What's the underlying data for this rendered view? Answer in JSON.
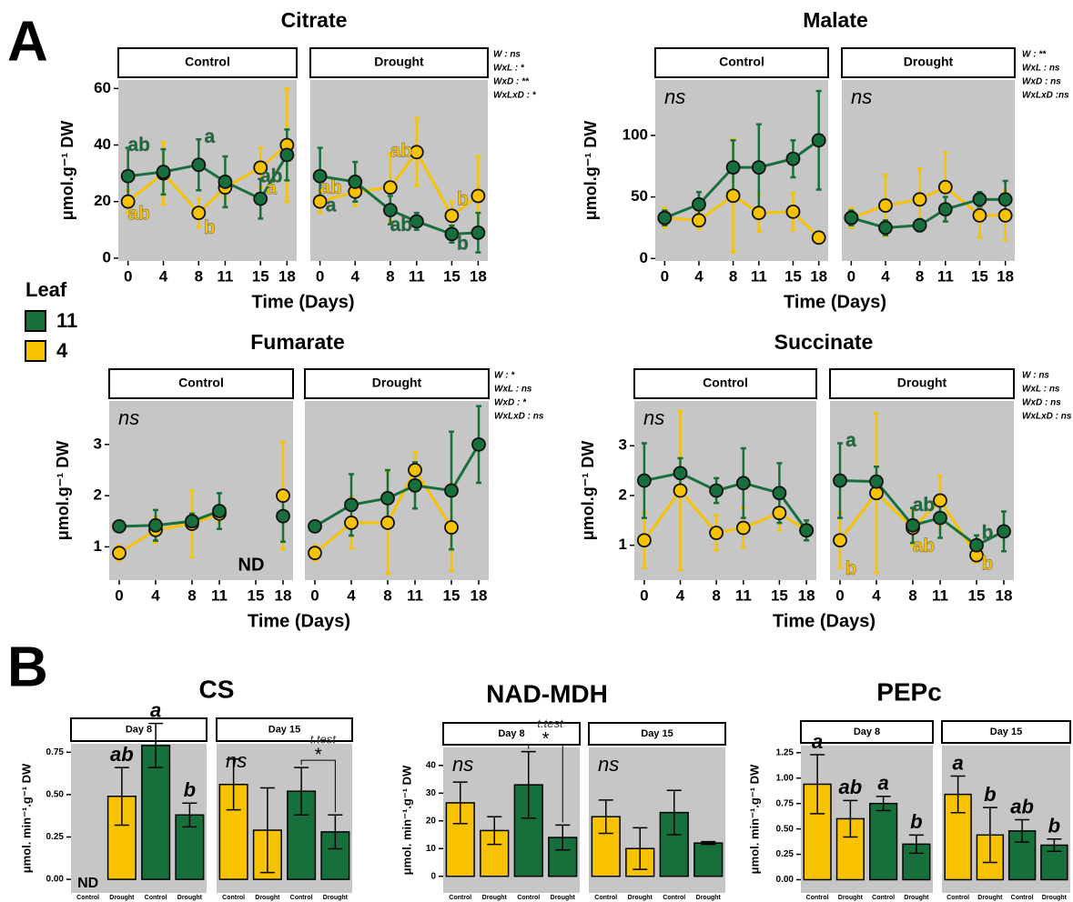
{
  "panel_labels": [
    "A",
    "B"
  ],
  "legend": {
    "title": "Leaf",
    "items": [
      {
        "name": "11",
        "color": "#17703c"
      },
      {
        "name": "4",
        "color": "#f7c200"
      }
    ]
  },
  "chart_data": [
    {
      "type": "line",
      "title": "Citrate",
      "ylabel": "μmol.g⁻¹ DW",
      "xlabel": "Time (Days)",
      "x": [
        0,
        4,
        8,
        11,
        15,
        18
      ],
      "xlim": [
        -1.1,
        19.1
      ],
      "xticks": [
        0,
        4,
        8,
        11,
        15,
        18
      ],
      "ylim": [
        -1,
        63
      ],
      "yticks": [
        0,
        20,
        40,
        60
      ],
      "stats": [
        "W : ns",
        "WxL : *",
        "WxD : **",
        "WxLxD : *"
      ],
      "facets": [
        {
          "name": "Control",
          "series": [
            {
              "color": "#f7c200",
              "values": [
                20,
                30,
                16,
                25,
                32,
                40
              ],
              "errors": [
                4,
                11,
                5,
                4,
                7,
                20
              ],
              "letters": [
                "ab",
                null,
                "b",
                null,
                "a",
                null
              ]
            },
            {
              "color": "#17703c",
              "values": [
                29,
                30.5,
                33,
                27,
                21,
                36.5
              ],
              "errors": [
                10,
                8,
                9,
                9,
                7,
                9
              ],
              "letters": [
                "ab",
                null,
                "a",
                null,
                "ab",
                null
              ]
            }
          ]
        },
        {
          "name": "Drought",
          "series": [
            {
              "color": "#f7c200",
              "values": [
                20,
                23.5,
                25,
                37.5,
                15,
                22
              ],
              "errors": [
                4,
                5,
                12,
                12,
                5,
                14
              ],
              "letters": [
                "ab",
                null,
                "ab",
                null,
                "b",
                null
              ]
            },
            {
              "color": "#17703c",
              "values": [
                29,
                27,
                17,
                13,
                8.5,
                9
              ],
              "errors": [
                10,
                7,
                5,
                3,
                3,
                7
              ],
              "letters": [
                "a",
                null,
                "ab",
                null,
                "b",
                null
              ]
            }
          ]
        }
      ]
    },
    {
      "type": "line",
      "title": "Malate",
      "ylabel": "μmol.g⁻¹ DW",
      "xlabel": "Time (Days)",
      "x": [
        0,
        4,
        8,
        11,
        15,
        18
      ],
      "xlim": [
        -1.1,
        19.1
      ],
      "xticks": [
        0,
        4,
        8,
        11,
        15,
        18
      ],
      "ylim": [
        -2,
        145
      ],
      "yticks": [
        0,
        50,
        100
      ],
      "stats": [
        "W : **",
        "WxL : ns",
        "WxD : ns",
        "WxLxD :ns"
      ],
      "facets": [
        {
          "name": "Control",
          "annotation": "ns",
          "series": [
            {
              "color": "#f7c200",
              "values": [
                33,
                31,
                51,
                37,
                38,
                17
              ],
              "errors": [
                8,
                7,
                46,
                15,
                15,
                4
              ]
            },
            {
              "color": "#17703c",
              "values": [
                33,
                44,
                74,
                74,
                81,
                96
              ],
              "errors": [
                6,
                10,
                22,
                35,
                15,
                40
              ]
            }
          ]
        },
        {
          "name": "Drought",
          "annotation": "ns",
          "series": [
            {
              "color": "#f7c200",
              "values": [
                33,
                43,
                48,
                58,
                35,
                35
              ],
              "errors": [
                8,
                25,
                25,
                28,
                18,
                20
              ]
            },
            {
              "color": "#17703c",
              "values": [
                33,
                25,
                27,
                40,
                48,
                48
              ],
              "errors": [
                6,
                6,
                5,
                10,
                6,
                15
              ]
            }
          ]
        }
      ]
    },
    {
      "type": "line",
      "title": "Fumarate",
      "ylabel": "μmol.g⁻¹ DW",
      "xlabel": "Time (Days)",
      "x": [
        0,
        4,
        8,
        11,
        15,
        18
      ],
      "xlim": [
        -1.1,
        19.1
      ],
      "xticks": [
        0,
        4,
        8,
        11,
        15,
        18
      ],
      "ylim": [
        0.35,
        3.85
      ],
      "yticks": [
        1,
        2,
        3
      ],
      "stats": [
        "W : *",
        "WxL : ns",
        "WxD : *",
        "WxLxD : ns"
      ],
      "facets": [
        {
          "name": "Control",
          "annotation": "ns",
          "nd": "ND",
          "series": [
            {
              "color": "#f7c200",
              "values": [
                0.88,
                1.33,
                1.45,
                1.65,
                null,
                2.0
              ],
              "errors": [
                0.15,
                0.25,
                0.65,
                0.15,
                null,
                1.05
              ]
            },
            {
              "color": "#17703c",
              "values": [
                1.4,
                1.42,
                1.5,
                1.7,
                null,
                1.6
              ],
              "errors": [
                0.08,
                0.3,
                0.15,
                0.35,
                null,
                0.5
              ]
            }
          ]
        },
        {
          "name": "Drought",
          "series": [
            {
              "color": "#f7c200",
              "values": [
                0.88,
                1.47,
                1.47,
                2.5,
                1.38,
                null
              ],
              "errors": [
                0.15,
                0.5,
                1.0,
                0.35,
                0.85,
                null
              ]
            },
            {
              "color": "#17703c",
              "values": [
                1.4,
                1.82,
                1.95,
                2.2,
                2.1,
                3.0
              ],
              "errors": [
                0.08,
                0.6,
                0.55,
                0.45,
                1.15,
                0.75
              ]
            }
          ]
        }
      ]
    },
    {
      "type": "line",
      "title": "Succinate",
      "ylabel": "μmol.g⁻¹ DW",
      "xlabel": "Time (Days)",
      "x": [
        0,
        4,
        8,
        11,
        15,
        18
      ],
      "xlim": [
        -1.1,
        19.1
      ],
      "xticks": [
        0,
        4,
        8,
        11,
        15,
        18
      ],
      "ylim": [
        0.3,
        3.9
      ],
      "yticks": [
        1,
        2,
        3
      ],
      "stats": [
        "W : ns",
        "WxL : ns",
        "WxD : ns",
        "WxLxD : ns"
      ],
      "facets": [
        {
          "name": "Control",
          "annotation": "ns",
          "series": [
            {
              "color": "#f7c200",
              "values": [
                1.1,
                2.1,
                1.25,
                1.35,
                1.65,
                1.3
              ],
              "errors": [
                0.55,
                1.6,
                0.35,
                0.4,
                0.35,
                0.2
              ]
            },
            {
              "color": "#17703c",
              "values": [
                2.3,
                2.45,
                2.1,
                2.25,
                2.05,
                1.3
              ],
              "errors": [
                0.75,
                0.3,
                0.25,
                0.7,
                0.6,
                0.2
              ]
            }
          ]
        },
        {
          "name": "Drought",
          "series": [
            {
              "color": "#f7c200",
              "values": [
                1.1,
                2.05,
                1.35,
                1.9,
                0.8,
                null
              ],
              "errors": [
                0.55,
                1.6,
                0.35,
                0.5,
                0.15,
                null
              ],
              "letters": [
                "b",
                null,
                "ab",
                null,
                "b",
                null
              ]
            },
            {
              "color": "#17703c",
              "values": [
                2.3,
                2.28,
                1.4,
                1.55,
                1.0,
                1.28
              ],
              "errors": [
                0.75,
                0.3,
                0.35,
                0.4,
                0.2,
                0.4
              ],
              "letters": [
                "a",
                null,
                "ab",
                null,
                "b",
                null
              ]
            }
          ]
        }
      ]
    },
    {
      "type": "bar",
      "title": "CS",
      "ylabel": "μmol. min⁻¹.g⁻¹ DW",
      "categories": [
        "Control",
        "Drought",
        "Control",
        "Drought"
      ],
      "colors": [
        "#f7c200",
        "#f7c200",
        "#17703c",
        "#17703c"
      ],
      "ylim": [
        -0.08,
        0.8
      ],
      "yticks": [
        {
          "value": 0,
          "label": "0.00"
        },
        {
          "value": 0.25,
          "label": "0.25"
        },
        {
          "value": 0.5,
          "label": "0.50"
        },
        {
          "value": 0.75,
          "label": "0.75"
        }
      ],
      "facets": [
        {
          "name": "Day 8",
          "nd": "ND",
          "values": [
            null,
            0.49,
            0.79,
            0.38
          ],
          "errors": [
            null,
            0.17,
            0.13,
            0.07
          ],
          "letters": [
            null,
            "ab",
            "a",
            "b"
          ]
        },
        {
          "name": "Day 15",
          "annotation": "ns",
          "values": [
            0.56,
            0.29,
            0.52,
            0.28
          ],
          "errors": [
            0.15,
            0.25,
            0.14,
            0.1
          ],
          "ttest": {
            "label": "t.test",
            "mark": "*"
          }
        }
      ]
    },
    {
      "type": "bar",
      "title": "NAD-MDH",
      "ylabel": "μmol. min⁻¹.g⁻¹ DW",
      "categories": [
        "Control",
        "Drought",
        "Control",
        "Drought"
      ],
      "colors": [
        "#f7c200",
        "#f7c200",
        "#17703c",
        "#17703c"
      ],
      "ylim": [
        -6,
        46.5
      ],
      "yticks": [
        0,
        10,
        20,
        30,
        40
      ],
      "facets": [
        {
          "name": "Day 8",
          "annotation": "ns",
          "values": [
            26.5,
            16.5,
            33,
            14
          ],
          "errors": [
            7.5,
            5,
            12,
            4.5
          ],
          "ttest": {
            "label": "t.test",
            "mark": "*"
          }
        },
        {
          "name": "Day 15",
          "annotation": "ns",
          "values": [
            21.5,
            10,
            23,
            12
          ],
          "errors": [
            6,
            7.5,
            8,
            0.5
          ]
        }
      ]
    },
    {
      "type": "bar",
      "title": "PEPc",
      "ylabel": "μmol. min⁻¹.g⁻¹ DW",
      "categories": [
        "Control",
        "Drought",
        "Control",
        "Drought"
      ],
      "colors": [
        "#f7c200",
        "#f7c200",
        "#17703c",
        "#17703c"
      ],
      "ylim": [
        -0.13,
        1.32
      ],
      "yticks": [
        {
          "value": 0,
          "label": "0.00"
        },
        {
          "value": 0.25,
          "label": "0.25"
        },
        {
          "value": 0.5,
          "label": "0.50"
        },
        {
          "value": 0.75,
          "label": "0.75"
        },
        {
          "value": 1,
          "label": "1.00"
        },
        {
          "value": 1.25,
          "label": "1.25"
        }
      ],
      "facets": [
        {
          "name": "Day 8",
          "values": [
            0.94,
            0.6,
            0.75,
            0.35
          ],
          "errors": [
            0.29,
            0.18,
            0.07,
            0.09
          ],
          "letters": [
            "a",
            "ab",
            "a",
            "b"
          ]
        },
        {
          "name": "Day 15",
          "values": [
            0.84,
            0.44,
            0.48,
            0.34
          ],
          "errors": [
            0.18,
            0.27,
            0.11,
            0.06
          ],
          "letters": [
            "a",
            "b",
            "ab",
            "b"
          ]
        }
      ]
    }
  ]
}
